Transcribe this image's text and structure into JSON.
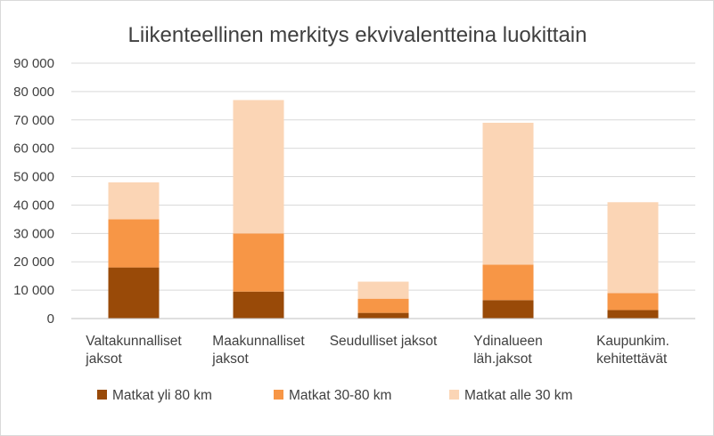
{
  "chart_data": {
    "type": "bar",
    "stacked": true,
    "title": "Liikenteellinen merkitys ekvivalentteina luokittain",
    "xlabel": "",
    "ylabel": "",
    "ylim": [
      0,
      90000
    ],
    "yticks": [
      "0",
      "10 000",
      "20 000",
      "30 000",
      "40 000",
      "50 000",
      "60 000",
      "70 000",
      "80 000",
      "90 000"
    ],
    "categories": [
      [
        "Valtakunnalliset",
        "jaksot"
      ],
      [
        "Maakunnalliset",
        "jaksot"
      ],
      [
        "Seudulliset jaksot"
      ],
      [
        "Ydinalueen",
        "läh.jaksot"
      ],
      [
        "Kaupunkim.",
        "kehitettävät"
      ]
    ],
    "series": [
      {
        "name": "Matkat yli 80 km",
        "color": "#994a08",
        "values": [
          18000,
          9500,
          2000,
          6500,
          3000
        ]
      },
      {
        "name": "Matkat 30-80 km",
        "color": "#f79646",
        "values": [
          17000,
          20500,
          5000,
          12500,
          6000
        ]
      },
      {
        "name": "Matkat alle 30 km",
        "color": "#fbd5b5",
        "values": [
          13000,
          47000,
          6000,
          50000,
          32000
        ]
      }
    ],
    "grid": true,
    "legend_position": "bottom"
  }
}
